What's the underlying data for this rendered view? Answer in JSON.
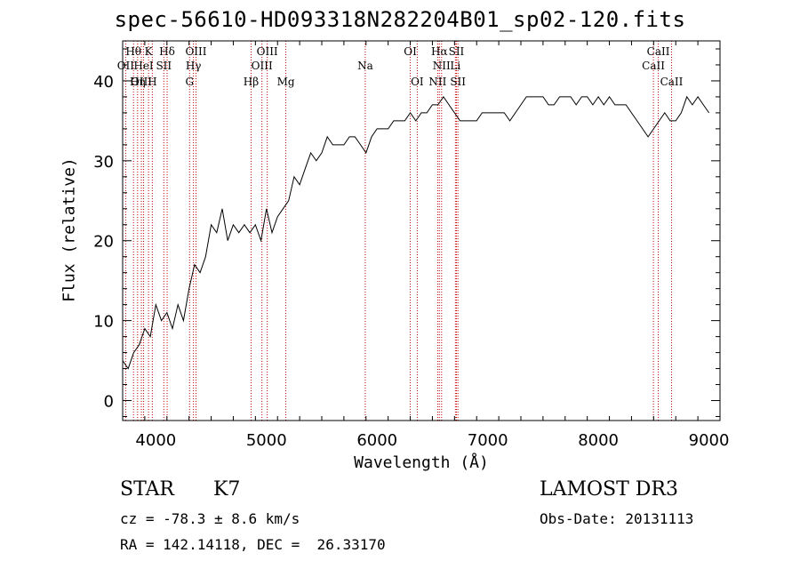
{
  "header": {
    "title": "spec-56610-HD093318N282204B01_sp02-120.fits"
  },
  "footer": {
    "class_label": "STAR",
    "subclass": "K7",
    "survey": "LAMOST DR3",
    "cz": "cz = -78.3 ± 8.6 km/s",
    "obs_date": "Obs-Date: 20131113",
    "radec": "RA = 142.14118, DEC =  26.33170"
  },
  "chart_data": {
    "type": "line",
    "title": "spec-56610-HD093318N282204B01_sp02-120.fits",
    "xlabel": "Wavelength (Å)",
    "ylabel": "Flux (relative)",
    "xlim": [
      3700,
      9100
    ],
    "ylim": [
      -2.5,
      45
    ],
    "xticks": [
      4000,
      5000,
      6000,
      7000,
      8000,
      9000
    ],
    "yticks": [
      0,
      10,
      20,
      30,
      40
    ],
    "grid": false,
    "colors": {
      "line": "#000000",
      "marker_lines": "#c00000"
    },
    "series": [
      {
        "x": [
          3700,
          3750,
          3800,
          3850,
          3900,
          3950,
          4000,
          4050,
          4100,
          4150,
          4200,
          4250,
          4300,
          4350,
          4400,
          4450,
          4500,
          4550,
          4600,
          4650,
          4700,
          4750,
          4800,
          4850,
          4900,
          4950,
          5000,
          5050,
          5100,
          5150,
          5200,
          5250,
          5300,
          5350,
          5400,
          5450,
          5500,
          5550,
          5600,
          5650,
          5700,
          5750,
          5800,
          5850,
          5900,
          5950,
          6000,
          6050,
          6100,
          6150,
          6200,
          6250,
          6300,
          6350,
          6400,
          6450,
          6500,
          6550,
          6600,
          6650,
          6700,
          6750,
          6800,
          6850,
          6900,
          6950,
          7000,
          7050,
          7100,
          7150,
          7200,
          7250,
          7300,
          7350,
          7400,
          7450,
          7500,
          7550,
          7600,
          7650,
          7700,
          7750,
          7800,
          7850,
          7900,
          7950,
          8000,
          8050,
          8100,
          8150,
          8200,
          8250,
          8300,
          8350,
          8400,
          8450,
          8500,
          8550,
          8600,
          8650,
          8700,
          8750,
          8800,
          8850,
          8900,
          8950,
          9000
        ],
        "y": [
          5,
          4,
          6,
          7,
          9,
          8,
          12,
          10,
          11,
          9,
          12,
          10,
          14,
          17,
          16,
          18,
          22,
          21,
          24,
          20,
          22,
          21,
          22,
          21,
          22,
          20,
          24,
          21,
          23,
          24,
          25,
          28,
          27,
          29,
          31,
          30,
          31,
          33,
          32,
          32,
          32,
          33,
          33,
          32,
          31,
          33,
          34,
          34,
          34,
          35,
          35,
          35,
          36,
          35,
          36,
          36,
          37,
          37,
          38,
          37,
          36,
          35,
          35,
          35,
          35,
          36,
          36,
          36,
          36,
          36,
          35,
          36,
          37,
          38,
          38,
          38,
          38,
          37,
          37,
          38,
          38,
          38,
          37,
          38,
          38,
          37,
          38,
          37,
          38,
          37,
          37,
          37,
          36,
          35,
          34,
          33,
          34,
          35,
          36,
          35,
          35,
          36,
          38,
          37,
          38,
          37,
          36
        ]
      }
    ],
    "lines": [
      {
        "name": "Hθ",
        "x": 3798,
        "row": 1
      },
      {
        "name": "OII",
        "x": 3727,
        "row": 2
      },
      {
        "name": "OIII",
        "x": 3869,
        "row": 3
      },
      {
        "name": "HeI",
        "x": 3889,
        "row": 2
      },
      {
        "name": "Hη",
        "x": 3835,
        "row": 3
      },
      {
        "name": "K",
        "x": 3934,
        "row": 1
      },
      {
        "name": "H",
        "x": 3968,
        "row": 3
      },
      {
        "name": "SII",
        "x": 4072,
        "row": 2
      },
      {
        "name": "Hδ",
        "x": 4102,
        "row": 1
      },
      {
        "name": "OIII",
        "x": 4363,
        "row": 1
      },
      {
        "name": "Hγ",
        "x": 4340,
        "row": 2
      },
      {
        "name": "G",
        "x": 4305,
        "row": 3
      },
      {
        "name": "Hβ",
        "x": 4861,
        "row": 3
      },
      {
        "name": "OIII",
        "x": 5007,
        "row": 1
      },
      {
        "name": "OIII",
        "x": 4959,
        "row": 2
      },
      {
        "name": "Mg",
        "x": 5175,
        "row": 3
      },
      {
        "name": "Na",
        "x": 5893,
        "row": 2
      },
      {
        "name": "OI",
        "x": 6300,
        "row": 1
      },
      {
        "name": "OI",
        "x": 6363,
        "row": 3
      },
      {
        "name": "Hα",
        "x": 6563,
        "row": 1
      },
      {
        "name": "NII",
        "x": 6583,
        "row": 2
      },
      {
        "name": "NII",
        "x": 6548,
        "row": 3
      },
      {
        "name": "SII",
        "x": 6717,
        "row": 1
      },
      {
        "name": "Li",
        "x": 6708,
        "row": 2
      },
      {
        "name": "SII",
        "x": 6731,
        "row": 3
      },
      {
        "name": "CaII",
        "x": 8542,
        "row": 1
      },
      {
        "name": "CaII",
        "x": 8498,
        "row": 2
      },
      {
        "name": "CaII",
        "x": 8662,
        "row": 3
      }
    ]
  }
}
